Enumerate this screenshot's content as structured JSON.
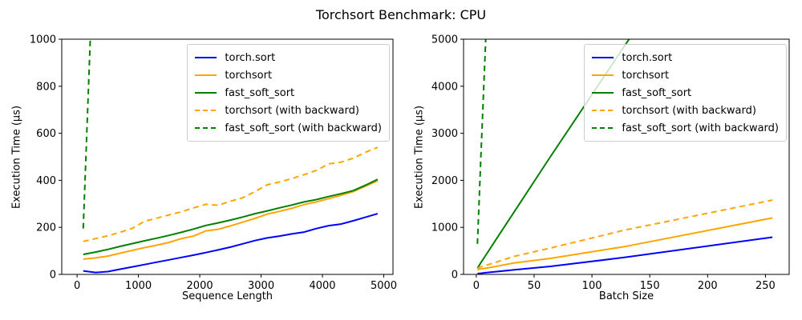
{
  "figure": {
    "title": "Torchsort Benchmark: CPU",
    "background": "#ffffff",
    "text_color": "#000000"
  },
  "colors": {
    "blue": "#0000ff",
    "orange": "#ffa500",
    "green": "#008000",
    "legend_border": "#cccccc"
  },
  "chart_data": [
    {
      "type": "line",
      "title": "",
      "xlabel": "Sequence Length",
      "ylabel": "Execution Time (µs)",
      "xlim": [
        -250,
        5150
      ],
      "ylim": [
        0,
        1000
      ],
      "xticks": [
        0,
        1000,
        2000,
        3000,
        4000,
        5000
      ],
      "yticks": [
        0,
        200,
        400,
        600,
        800,
        1000
      ],
      "grid": false,
      "legend_position": "upper right",
      "series": [
        {
          "name": "torch.sort",
          "color": "#0000ff",
          "dashed": false,
          "x": [
            100,
            300,
            500,
            700,
            900,
            1100,
            1300,
            1500,
            1700,
            1900,
            2100,
            2300,
            2500,
            2700,
            2900,
            3100,
            3300,
            3500,
            3700,
            3900,
            4100,
            4300,
            4500,
            4700,
            4900
          ],
          "y": [
            15,
            8,
            12,
            22,
            32,
            42,
            52,
            62,
            72,
            82,
            93,
            104,
            116,
            130,
            144,
            155,
            163,
            172,
            180,
            195,
            207,
            214,
            228,
            243,
            258
          ]
        },
        {
          "name": "torchsort",
          "color": "#ffa500",
          "dashed": false,
          "x": [
            100,
            300,
            500,
            700,
            900,
            1100,
            1300,
            1500,
            1700,
            1900,
            2100,
            2300,
            2500,
            2700,
            2900,
            3100,
            3300,
            3500,
            3700,
            3900,
            4100,
            4300,
            4500,
            4700,
            4900
          ],
          "y": [
            65,
            70,
            78,
            90,
            102,
            114,
            124,
            136,
            152,
            163,
            185,
            192,
            206,
            222,
            238,
            256,
            268,
            281,
            297,
            308,
            322,
            336,
            352,
            375,
            398
          ]
        },
        {
          "name": "fast_soft_sort",
          "color": "#008000",
          "dashed": false,
          "x": [
            100,
            300,
            500,
            700,
            900,
            1100,
            1300,
            1500,
            1700,
            1900,
            2100,
            2300,
            2500,
            2700,
            2900,
            3100,
            3300,
            3500,
            3700,
            3900,
            4100,
            4300,
            4500,
            4700,
            4900
          ],
          "y": [
            85,
            95,
            106,
            119,
            131,
            143,
            154,
            166,
            179,
            193,
            208,
            219,
            231,
            244,
            258,
            270,
            283,
            295,
            308,
            318,
            331,
            343,
            356,
            379,
            404
          ]
        },
        {
          "name": "torchsort (with backward)",
          "color": "#ffa500",
          "dashed": true,
          "x": [
            100,
            300,
            500,
            700,
            900,
            1100,
            1300,
            1500,
            1700,
            1900,
            2100,
            2300,
            2500,
            2700,
            2900,
            3100,
            3300,
            3500,
            3700,
            3900,
            4100,
            4300,
            4500,
            4700,
            4900
          ],
          "y": [
            140,
            152,
            164,
            179,
            196,
            226,
            239,
            253,
            266,
            283,
            298,
            294,
            311,
            326,
            352,
            381,
            393,
            407,
            424,
            442,
            470,
            477,
            494,
            519,
            540
          ]
        },
        {
          "name": "fast_soft_sort (with backward)",
          "color": "#008000",
          "dashed": true,
          "x": [
            100,
            300,
            500
          ],
          "y": [
            195,
            1600,
            3000
          ]
        }
      ]
    },
    {
      "type": "line",
      "title": "",
      "xlabel": "Batch Size",
      "ylabel": "Execution Time (µs)",
      "xlim": [
        -11,
        270.5
      ],
      "ylim": [
        0,
        5000
      ],
      "xticks": [
        0,
        50,
        100,
        150,
        200,
        250
      ],
      "yticks": [
        0,
        1000,
        2000,
        3000,
        4000,
        5000
      ],
      "grid": false,
      "legend_position": "upper right",
      "series": [
        {
          "name": "torch.sort",
          "color": "#0000ff",
          "dashed": false,
          "x": [
            1,
            2,
            4,
            8,
            16,
            32,
            64,
            128,
            256
          ],
          "y": [
            15,
            18,
            24,
            35,
            55,
            95,
            170,
            360,
            790
          ]
        },
        {
          "name": "torchsort",
          "color": "#ffa500",
          "dashed": false,
          "x": [
            1,
            2,
            4,
            8,
            16,
            32,
            64,
            128,
            256
          ],
          "y": [
            100,
            105,
            115,
            130,
            165,
            240,
            340,
            590,
            1200
          ]
        },
        {
          "name": "fast_soft_sort",
          "color": "#008000",
          "dashed": false,
          "x": [
            1,
            2,
            4,
            8,
            16,
            32,
            64,
            128,
            256
          ],
          "y": [
            130,
            170,
            250,
            400,
            700,
            1300,
            2500,
            4850,
            9550
          ]
        },
        {
          "name": "torchsort (with backward)",
          "color": "#ffa500",
          "dashed": true,
          "x": [
            1,
            2,
            4,
            8,
            16,
            32,
            64,
            128,
            256
          ],
          "y": [
            130,
            140,
            160,
            190,
            250,
            380,
            560,
            940,
            1580
          ]
        },
        {
          "name": "fast_soft_sort (with backward)",
          "color": "#008000",
          "dashed": true,
          "x": [
            1,
            2,
            4,
            8,
            16
          ],
          "y": [
            650,
            1250,
            2500,
            4900,
            9800
          ]
        }
      ]
    }
  ]
}
